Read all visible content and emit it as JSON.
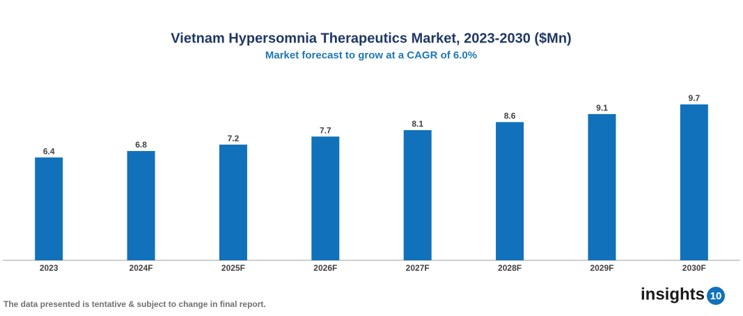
{
  "chart_data": {
    "type": "bar",
    "title": "Vietnam Hypersomnia Therapeutics Market, 2023-2030 ($Mn)",
    "subtitle": "Market forecast to grow at a CAGR of 6.0%",
    "categories": [
      "2023",
      "2024F",
      "2025F",
      "2026F",
      "2027F",
      "2028F",
      "2029F",
      "2030F"
    ],
    "values": [
      6.4,
      6.8,
      7.2,
      7.7,
      8.1,
      8.6,
      9.1,
      9.7
    ],
    "color": "#1171ba",
    "ylim": [
      0,
      11
    ],
    "grid": false
  },
  "footnote": "The data presented is tentative & subject to change in final report.",
  "brand": {
    "name": "insights",
    "number": "10"
  }
}
